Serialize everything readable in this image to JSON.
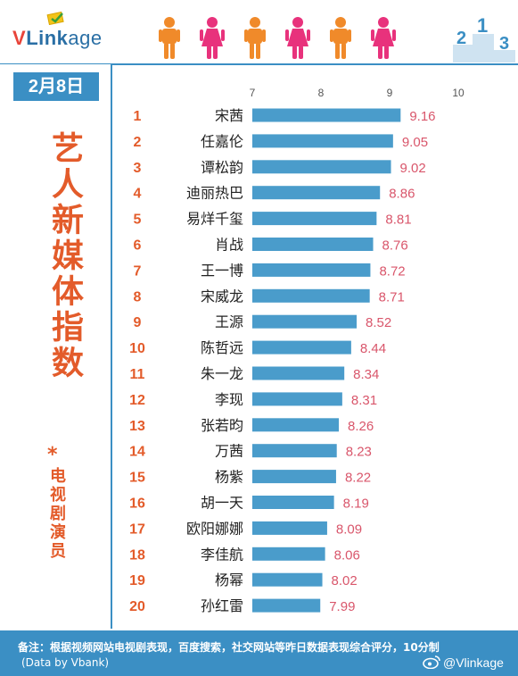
{
  "brand": {
    "logo_text": "VLinkage",
    "weibo_handle": "@Vlinkage"
  },
  "date_label": "2月8日",
  "vertical_title": "艺人新媒体指数",
  "star": "*",
  "vertical_subtitle": "电视剧演员",
  "footer": {
    "note": "备注：根据视频网站电视剧表现，百度搜索，社交网站等昨日数据表现综合评分，10分制",
    "source": "(Data by Vbank)"
  },
  "colors": {
    "bar": "#4a9ccb",
    "rank": "#e35b2a",
    "value": "#d9566b",
    "accent": "#3b8fc4",
    "title": "#e35b2a"
  },
  "chart_data": {
    "type": "bar",
    "orientation": "horizontal",
    "xlim": [
      7,
      10
    ],
    "ticks": [
      7,
      8,
      9,
      10
    ],
    "ranks": [
      1,
      2,
      3,
      4,
      5,
      6,
      7,
      8,
      9,
      10,
      11,
      12,
      13,
      14,
      15,
      16,
      17,
      18,
      19,
      20
    ],
    "categories": [
      "宋茜",
      "任嘉伦",
      "谭松韵",
      "迪丽热巴",
      "易烊千玺",
      "肖战",
      "王一博",
      "宋威龙",
      "王源",
      "陈哲远",
      "朱一龙",
      "李现",
      "张若昀",
      "万茜",
      "杨紫",
      "胡一天",
      "欧阳娜娜",
      "李佳航",
      "杨幂",
      "孙红雷"
    ],
    "values": [
      9.16,
      9.05,
      9.02,
      8.86,
      8.81,
      8.76,
      8.72,
      8.71,
      8.52,
      8.44,
      8.34,
      8.31,
      8.26,
      8.23,
      8.22,
      8.19,
      8.09,
      8.06,
      8.02,
      7.99
    ],
    "value_labels": [
      "9.16",
      "9.05",
      "9.02",
      "8.86",
      "8.81",
      "8.76",
      "8.72",
      "8.71",
      "8.52",
      "8.44",
      "8.34",
      "8.31",
      "8.26",
      "8.23",
      "8.22",
      "8.19",
      "8.09",
      "8.06",
      "8.02",
      "7.99"
    ]
  }
}
